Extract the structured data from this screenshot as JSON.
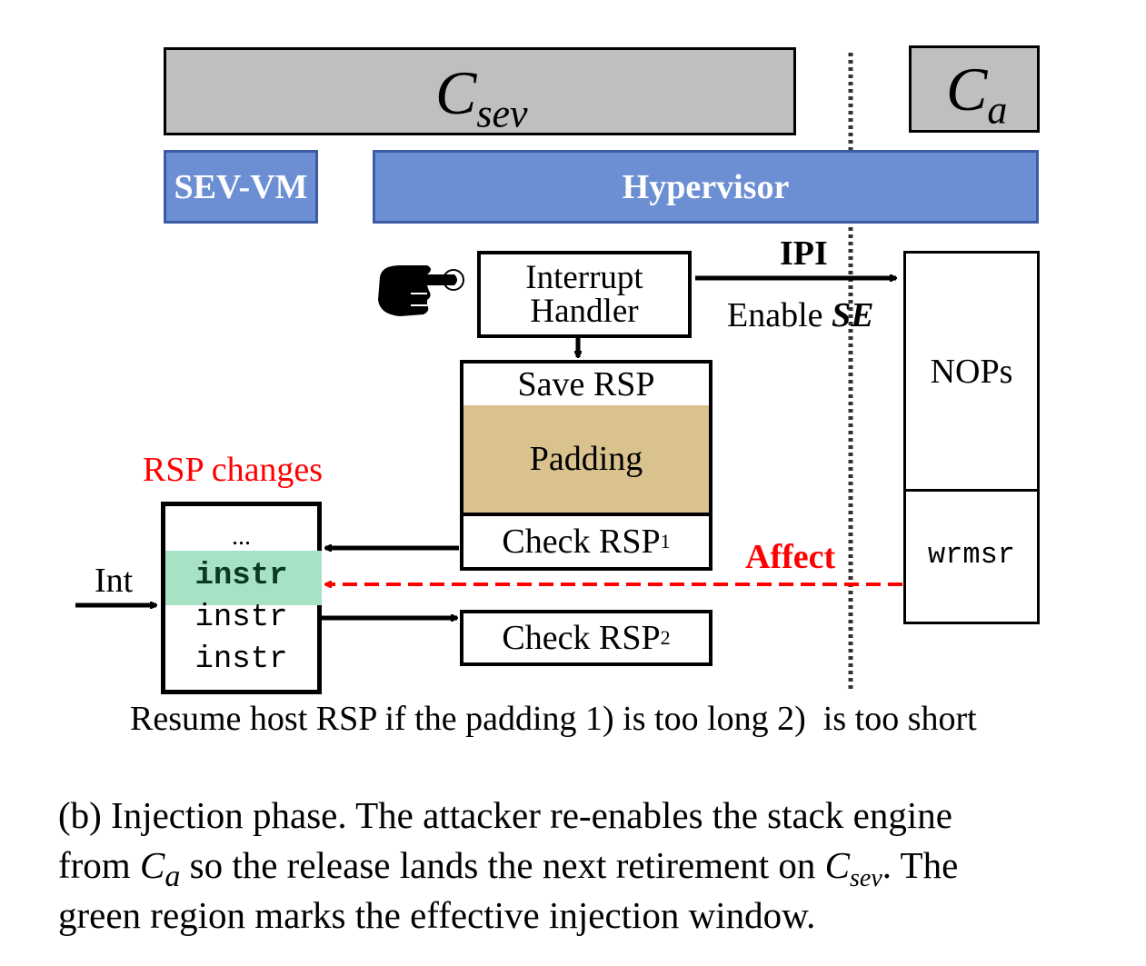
{
  "top": {
    "csev": {
      "main": "C",
      "sub": "sev"
    },
    "ca": {
      "main": "C",
      "sub": "a"
    }
  },
  "layers": {
    "sev_vm": "SEV-VM",
    "hypervisor": "Hypervisor"
  },
  "handler": {
    "line1": "Interrupt",
    "line2": "Handler"
  },
  "ipi": "IPI",
  "enable": {
    "prefix": "Enable ",
    "se": "SE"
  },
  "stack_blocks": {
    "save": "Save RSP",
    "padding": "Padding",
    "check1": "Check RSP",
    "check1_sub": "1",
    "check2": "Check RSP",
    "check2_sub": "2"
  },
  "ca_blocks": {
    "nops": "NOPs",
    "wrmsr": "wrmsr"
  },
  "rsp_changes": "RSP changes",
  "affect": "Affect",
  "int_label": "Int",
  "instr_box": {
    "dots": "...",
    "items": [
      "instr",
      "instr",
      "instr"
    ]
  },
  "resume_note": "Resume host RSP if the padding 1) is too long 2)  is too short",
  "caption": {
    "l1": "(b) Injection phase. The attacker re-enables the stack engine",
    "l2a": "from ",
    "l2_ca": "C",
    "l2_ca_sub": "a",
    "l2b": " so the release lands the next retirement on ",
    "l2_csev": "C",
    "l2_csev_sub": "sev",
    "l2c": ". The",
    "l3": "green region marks the effective injection window."
  },
  "colors": {
    "gray": "#bfbfbf",
    "blue": "#6b8fd2",
    "padding": "#d9c28e",
    "green": "#a8e2c4",
    "red": "#ff0000"
  }
}
